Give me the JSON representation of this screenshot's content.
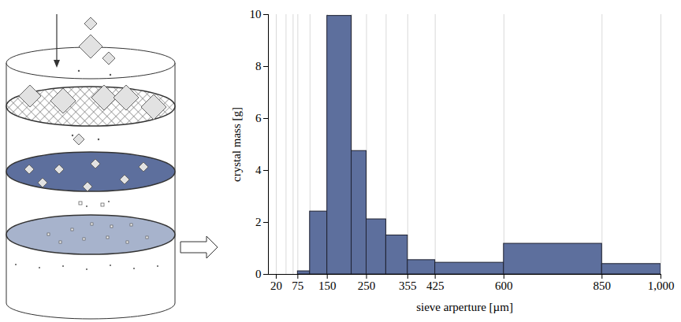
{
  "chart_data": {
    "type": "histogram",
    "x_label": "sieve arperture [µm]",
    "y_label": "crystal mass [g]",
    "bins": [
      20,
      45,
      63,
      75,
      106,
      150,
      212,
      250,
      300,
      355,
      425,
      600,
      850,
      1000
    ],
    "values": [
      0,
      0,
      0,
      0.12,
      2.42,
      9.95,
      4.75,
      2.12,
      1.5,
      0.55,
      0.45,
      1.18,
      0.4
    ],
    "color": "#5d6f9d",
    "xlim": [
      0,
      1000
    ],
    "xticks": [
      20,
      75,
      150,
      250,
      355,
      425,
      600,
      850,
      {
        "value": 1000,
        "label": "1,000"
      }
    ],
    "ylim": [
      0,
      10
    ],
    "yticks": [
      0,
      2,
      4,
      6,
      8,
      10
    ],
    "grid": true
  }
}
